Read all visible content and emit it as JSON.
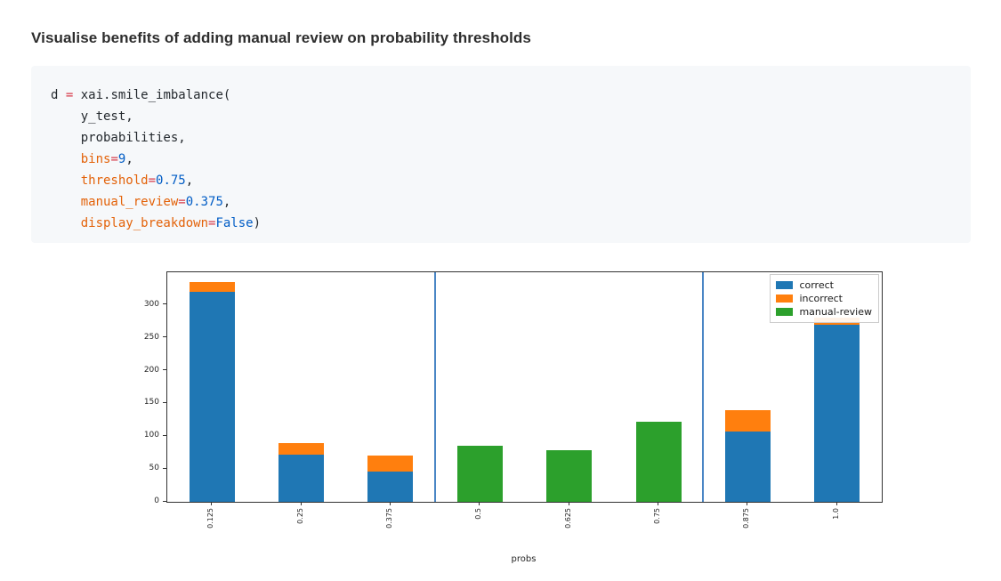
{
  "title": "Visualise benefits of adding manual review on probability thresholds",
  "code": {
    "lines": [
      [
        {
          "t": "d ",
          "c": "plain"
        },
        {
          "t": "=",
          "c": "op"
        },
        {
          "t": " xai.smile_imbalance(",
          "c": "plain"
        }
      ],
      [
        {
          "t": "    y_test,",
          "c": "plain"
        }
      ],
      [
        {
          "t": "    probabilities,",
          "c": "plain"
        }
      ],
      [
        {
          "t": "    ",
          "c": "plain"
        },
        {
          "t": "bins",
          "c": "param"
        },
        {
          "t": "=",
          "c": "op"
        },
        {
          "t": "9",
          "c": "num"
        },
        {
          "t": ",",
          "c": "plain"
        }
      ],
      [
        {
          "t": "    ",
          "c": "plain"
        },
        {
          "t": "threshold",
          "c": "param"
        },
        {
          "t": "=",
          "c": "op"
        },
        {
          "t": "0.75",
          "c": "num"
        },
        {
          "t": ",",
          "c": "plain"
        }
      ],
      [
        {
          "t": "    ",
          "c": "plain"
        },
        {
          "t": "manual_review",
          "c": "param"
        },
        {
          "t": "=",
          "c": "op"
        },
        {
          "t": "0.375",
          "c": "num"
        },
        {
          "t": ",",
          "c": "plain"
        }
      ],
      [
        {
          "t": "    ",
          "c": "plain"
        },
        {
          "t": "display_breakdown",
          "c": "param"
        },
        {
          "t": "=",
          "c": "op"
        },
        {
          "t": "False",
          "c": "kw"
        },
        {
          "t": ")",
          "c": "plain"
        }
      ]
    ]
  },
  "chart_data": {
    "type": "bar",
    "stacked": true,
    "title": "",
    "xlabel": "probs",
    "ylabel": "",
    "categories": [
      "0.125",
      "0.25",
      "0.375",
      "0.5",
      "0.625",
      "0.75",
      "0.875",
      "1.0"
    ],
    "series": [
      {
        "name": "correct",
        "color": "#1f77b4",
        "values": [
          320,
          72,
          46,
          0,
          0,
          0,
          107,
          270
        ]
      },
      {
        "name": "incorrect",
        "color": "#ff7f0e",
        "values": [
          15,
          17,
          24,
          0,
          0,
          0,
          33,
          11
        ]
      },
      {
        "name": "manual-review",
        "color": "#2ca02c",
        "values": [
          0,
          0,
          0,
          86,
          79,
          122,
          0,
          0
        ]
      }
    ],
    "yticks": [
      0,
      50,
      100,
      150,
      200,
      250,
      300
    ],
    "ylim": [
      0,
      350
    ],
    "grid": false,
    "vlines": {
      "positions": [
        2.5,
        5.5
      ],
      "color": "#4a86c5"
    },
    "legend": {
      "position": "upper right",
      "entries": [
        "correct",
        "incorrect",
        "manual-review"
      ]
    }
  }
}
